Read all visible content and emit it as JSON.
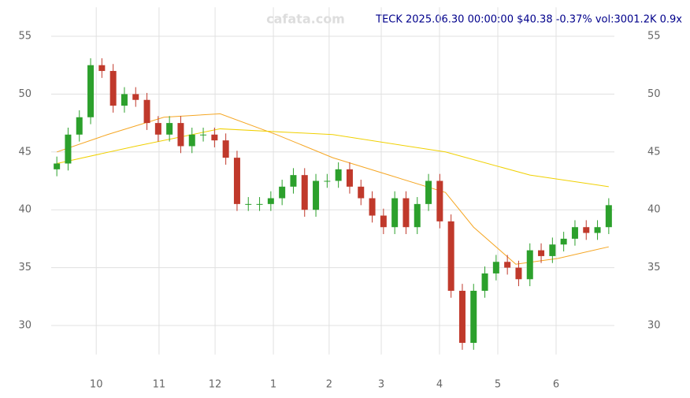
{
  "chart_data": {
    "type": "candlestick",
    "title": "TECK 2025.06.30 00:00:00 $40.38 -0.37% vol:3001.2K 0.9x",
    "watermark": "cafata.com",
    "x": [
      2,
      6,
      10,
      14,
      18,
      22,
      26,
      30,
      34,
      38,
      42,
      46,
      50,
      54,
      58,
      62,
      66,
      70,
      74,
      78,
      82,
      86,
      90,
      94,
      98,
      102,
      106,
      110,
      114,
      118,
      122,
      126,
      130,
      134,
      138,
      142,
      146,
      150,
      154,
      158,
      162,
      166,
      170,
      174,
      178,
      182,
      186,
      190,
      194,
      198
    ],
    "open": [
      43.5,
      44,
      46.5,
      48,
      52.5,
      52,
      49,
      50,
      49.5,
      47.5,
      46.5,
      47.5,
      45.5,
      46.5,
      46.5,
      46,
      44.5,
      40.5,
      40.5,
      40.5,
      41,
      42,
      43,
      40,
      42.5,
      42.5,
      43.5,
      42,
      41,
      39.5,
      38.5,
      41,
      38.5,
      40.5,
      42.5,
      39,
      33,
      28.5,
      33,
      34.5,
      35.5,
      35,
      34,
      36.5,
      36,
      37,
      37.5,
      38.5,
      38,
      38.5
    ],
    "high": [
      44.6,
      47.1,
      48.6,
      53.1,
      53.1,
      52.6,
      50.6,
      50.6,
      50.1,
      48.1,
      48.1,
      48.1,
      47.1,
      47.1,
      47.1,
      46.6,
      45.1,
      41.1,
      41.1,
      41.6,
      42.6,
      43.6,
      43.6,
      43.1,
      43.1,
      44.1,
      44.1,
      42.6,
      41.6,
      40.1,
      41.6,
      41.6,
      41.1,
      43.1,
      43.1,
      39.6,
      33.6,
      33.6,
      35.1,
      36.1,
      36.1,
      35.6,
      37.1,
      37.1,
      37.6,
      38.1,
      39.1,
      39.1,
      39.1,
      41.0
    ],
    "low": [
      42.9,
      43.4,
      45.9,
      47.4,
      51.4,
      48.4,
      48.4,
      48.9,
      46.9,
      45.9,
      45.9,
      44.9,
      44.9,
      45.9,
      45.4,
      43.9,
      39.9,
      39.9,
      39.9,
      39.9,
      40.4,
      41.4,
      39.4,
      39.4,
      41.9,
      41.9,
      41.4,
      40.4,
      38.9,
      37.9,
      37.9,
      37.9,
      37.9,
      39.9,
      38.4,
      32.4,
      27.9,
      27.9,
      32.4,
      33.9,
      34.4,
      33.4,
      33.4,
      35.4,
      35.4,
      36.4,
      36.9,
      37.4,
      37.4,
      37.9
    ],
    "close": [
      44,
      46.5,
      48,
      52.5,
      52,
      49,
      50,
      49.5,
      47.5,
      46.5,
      47.5,
      45.5,
      46.5,
      46.5,
      46,
      44.5,
      40.5,
      40.5,
      40.5,
      41,
      42,
      43,
      40,
      42.5,
      42.5,
      43.5,
      42,
      41,
      39.5,
      38.5,
      41,
      38.5,
      40.5,
      42.5,
      39,
      33,
      28.5,
      33,
      34.5,
      35.5,
      35,
      34,
      36.5,
      36,
      37,
      37.5,
      38.5,
      38,
      38.5,
      40.4
    ],
    "up_color": "#2ca02c",
    "down_color": "#c0392b",
    "overlays": [
      {
        "color": "#f5a623",
        "x": [
          2,
          20,
          40,
          60,
          80,
          100,
          120,
          140,
          150,
          165,
          180,
          198
        ],
        "values": [
          45,
          46.5,
          48,
          48.3,
          46.5,
          44.5,
          43,
          41.5,
          38.5,
          35.3,
          35.8,
          36.8
        ]
      },
      {
        "color": "#f0d000",
        "x": [
          2,
          30,
          60,
          100,
          140,
          170,
          198
        ],
        "values": [
          44,
          45.5,
          47,
          46.5,
          45,
          43,
          42
        ]
      }
    ],
    "xlim": [
      0,
      200
    ],
    "ylim": [
      27.5,
      57.5
    ],
    "xticks": [
      {
        "value": 16,
        "label": "10"
      },
      {
        "value": 38.3,
        "label": "11"
      },
      {
        "value": 58.2,
        "label": "12"
      },
      {
        "value": 78.9,
        "label": "1"
      },
      {
        "value": 98.7,
        "label": "2"
      },
      {
        "value": 117.2,
        "label": "3"
      },
      {
        "value": 137.9,
        "label": "4"
      },
      {
        "value": 158.6,
        "label": "5"
      },
      {
        "value": 179.3,
        "label": "6"
      }
    ],
    "yticks": [
      30,
      35,
      40,
      45,
      50,
      55
    ],
    "grid": true
  }
}
